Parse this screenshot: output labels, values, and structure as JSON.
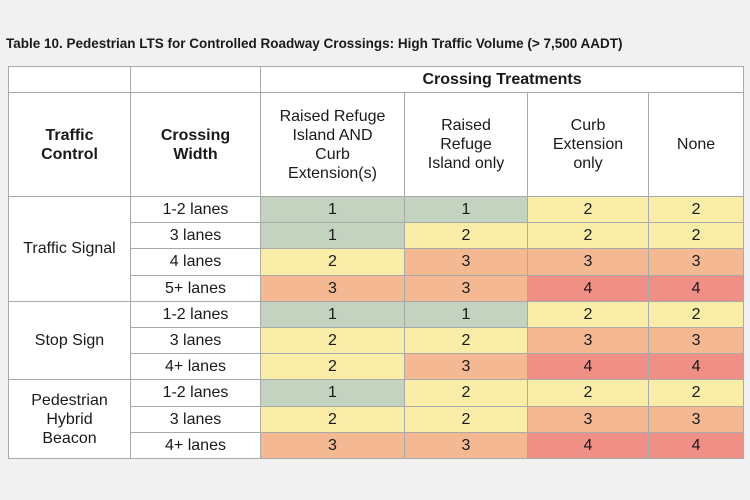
{
  "title": "Table 10. Pedestrian LTS for Controlled Roadway Crossings: High Traffic Volume (> 7,500 AADT)",
  "header": {
    "group_label": "Crossing Treatments",
    "traffic_control_l1": "Traffic",
    "traffic_control_l2": "Control",
    "crossing_width_l1": "Crossing",
    "crossing_width_l2": "Width",
    "treatments": [
      [
        "Raised Refuge",
        "Island AND",
        "Curb",
        "Extension(s)"
      ],
      [
        "Raised",
        "Refuge",
        "Island only"
      ],
      [
        "Curb",
        "Extension",
        "only"
      ],
      [
        "None"
      ]
    ]
  },
  "colors": {
    "level_1": "#c4d3bf",
    "level_2": "#f9eda7",
    "level_3": "#f4b892",
    "level_4": "#ef8f85"
  },
  "groups": [
    {
      "control_lines": [
        "Traffic Signal"
      ],
      "rows": [
        {
          "width": "1-2 lanes",
          "values": [
            "1",
            "1",
            "2",
            "2"
          ]
        },
        {
          "width": "3 lanes",
          "values": [
            "1",
            "2",
            "2",
            "2"
          ]
        },
        {
          "width": "4 lanes",
          "values": [
            "2",
            "3",
            "3",
            "3"
          ]
        },
        {
          "width": "5+ lanes",
          "values": [
            "3",
            "3",
            "4",
            "4"
          ]
        }
      ]
    },
    {
      "control_lines": [
        "Stop Sign"
      ],
      "rows": [
        {
          "width": "1-2 lanes",
          "values": [
            "1",
            "1",
            "2",
            "2"
          ]
        },
        {
          "width": "3 lanes",
          "values": [
            "2",
            "2",
            "3",
            "3"
          ]
        },
        {
          "width": "4+ lanes",
          "values": [
            "2",
            "3",
            "4",
            "4"
          ]
        }
      ]
    },
    {
      "control_lines": [
        "Pedestrian",
        "Hybrid",
        "Beacon"
      ],
      "rows": [
        {
          "width": "1-2 lanes",
          "values": [
            "1",
            "2",
            "2",
            "2"
          ]
        },
        {
          "width": "3 lanes",
          "values": [
            "2",
            "2",
            "3",
            "3"
          ]
        },
        {
          "width": "4+ lanes",
          "values": [
            "3",
            "3",
            "4",
            "4"
          ]
        }
      ]
    }
  ]
}
